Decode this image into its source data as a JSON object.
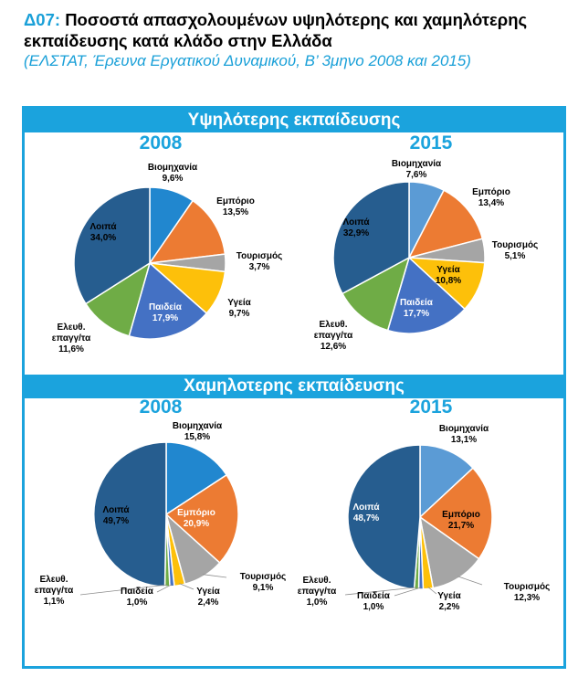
{
  "header": {
    "code": "Δ07:",
    "title": "Ποσοστά απασχολουμένων υψηλότερης και χαμηλότερης εκπαίδευσης κατά κλάδο στην Ελλάδα",
    "subtitle": "(ΕΛΣΤΑΤ, Έρευνα Εργατικού Δυναμικού, Β’ 3μηνο 2008 και 2015)"
  },
  "sections": {
    "higher": "Υψηλότερης εκπαίδευσης",
    "lower": "Χαμηλοτερης εκπαίδευσης"
  },
  "colors": {
    "accent": "#1ba3dd",
    "Βιομηχανία": "#2187cf",
    "Εμπόριο": "#ec7b33",
    "Τουρισμός": "#a5a5a5",
    "Υγεία": "#fdc00a",
    "Παιδεία": "#4471c4",
    "Ελευθ. επαγγ/τα": "#6fac46",
    "Λοιπά": "#265d8f",
    "Βιομηχανία_2015": "#5b9bd5"
  },
  "chart_data": [
    {
      "type": "pie",
      "title": "2008",
      "group": "Υψηλότερης εκπαίδευσης",
      "slices": [
        {
          "label": "Βιομηχανία",
          "value": 9.6,
          "text": "9,6%"
        },
        {
          "label": "Εμπόριο",
          "value": 13.5,
          "text": "13,5%"
        },
        {
          "label": "Τουρισμός",
          "value": 3.7,
          "text": "3,7%"
        },
        {
          "label": "Υγεία",
          "value": 9.7,
          "text": "9,7%"
        },
        {
          "label": "Παιδεία",
          "value": 17.9,
          "text": "17,9%"
        },
        {
          "label": "Ελευθ. επαγγ/τα",
          "value": 11.6,
          "text": "11,6%"
        },
        {
          "label": "Λοιπά",
          "value": 34.0,
          "text": "34,0%"
        }
      ]
    },
    {
      "type": "pie",
      "title": "2015",
      "group": "Υψηλότερης εκπαίδευσης",
      "slices": [
        {
          "label": "Βιομηχανία",
          "value": 7.6,
          "text": "7,6%"
        },
        {
          "label": "Εμπόριο",
          "value": 13.4,
          "text": "13,4%"
        },
        {
          "label": "Τουρισμός",
          "value": 5.1,
          "text": "5,1%"
        },
        {
          "label": "Υγεία",
          "value": 10.8,
          "text": "10,8%"
        },
        {
          "label": "Παιδεία",
          "value": 17.7,
          "text": "17,7%"
        },
        {
          "label": "Ελευθ. επαγγ/τα",
          "value": 12.6,
          "text": "12,6%"
        },
        {
          "label": "Λοιπά",
          "value": 32.9,
          "text": "32,9%"
        }
      ]
    },
    {
      "type": "pie",
      "title": "2008",
      "group": "Χαμηλοτερης εκπαίδευσης",
      "slices": [
        {
          "label": "Βιομηχανία",
          "value": 15.8,
          "text": "15,8%"
        },
        {
          "label": "Εμπόριο",
          "value": 20.9,
          "text": "20,9%"
        },
        {
          "label": "Τουρισμός",
          "value": 9.1,
          "text": "9,1%"
        },
        {
          "label": "Υγεία",
          "value": 2.4,
          "text": "2,4%"
        },
        {
          "label": "Παιδεία",
          "value": 1.0,
          "text": "1,0%"
        },
        {
          "label": "Ελευθ. επαγγ/τα",
          "value": 1.1,
          "text": "1,1%"
        },
        {
          "label": "Λοιπά",
          "value": 49.7,
          "text": "49,7%"
        }
      ]
    },
    {
      "type": "pie",
      "title": "2015",
      "group": "Χαμηλοτερης εκπαίδευσης",
      "slices": [
        {
          "label": "Βιομηχανία",
          "value": 13.1,
          "text": "13,1%"
        },
        {
          "label": "Εμπόριο",
          "value": 21.7,
          "text": "21,7%"
        },
        {
          "label": "Τουρισμός",
          "value": 12.3,
          "text": "12,3%"
        },
        {
          "label": "Υγεία",
          "value": 2.2,
          "text": "2,2%"
        },
        {
          "label": "Παιδεία",
          "value": 1.0,
          "text": "1,0%"
        },
        {
          "label": "Ελευθ. επαγγ/τα",
          "value": 1.0,
          "text": "1,0%"
        },
        {
          "label": "Λοιπά",
          "value": 48.7,
          "text": "48,7%"
        }
      ]
    }
  ]
}
